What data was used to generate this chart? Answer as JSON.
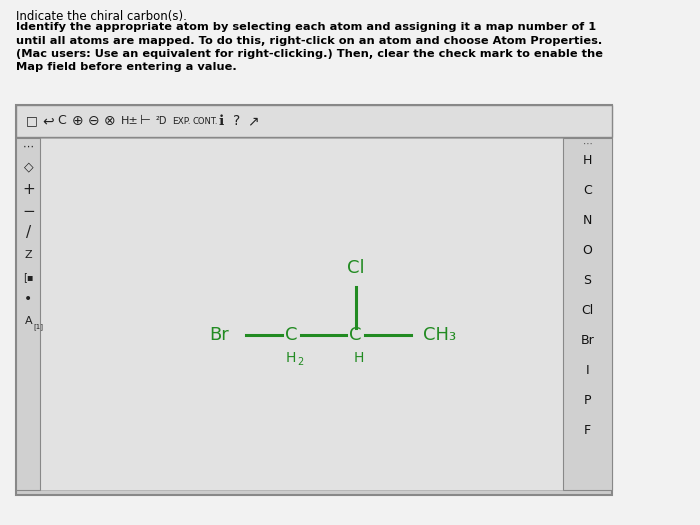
{
  "title_line1": "Indicate the chiral carbon(s).",
  "instructions": "Identify the appropriate atom by selecting each atom and assigning it a map number of 1\nuntil all atoms are mapped. To do this, right-click on an atom and choose Atom Properties.\n(Mac users: Use an equivalent for right-clicking.) Then, clear the check mark to enable the\nMap field before entering a value.",
  "bg_color": "#f2f2f2",
  "canvas_bg": "#d4d4d4",
  "text_color": "#000000",
  "molecule_color": "#228B22",
  "right_panel_items": [
    "H",
    "C",
    "N",
    "O",
    "S",
    "Cl",
    "Br",
    "I",
    "P",
    "F"
  ],
  "figsize": [
    7.0,
    5.25
  ],
  "dpi": 100
}
